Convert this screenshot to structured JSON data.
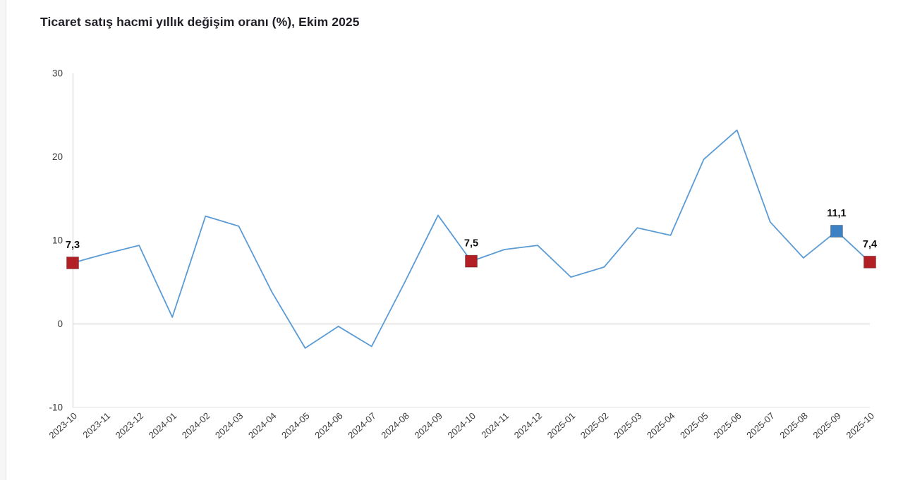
{
  "page": {
    "title": "Ticaret satış hacmi yıllık değişim oranı (%), Ekim 2025"
  },
  "chart_data": {
    "type": "line",
    "title": "Ticaret satış hacmi yıllık değişim oranı (%), Ekim 2025",
    "categories": [
      "2023-10",
      "2023-11",
      "2023-12",
      "2024-01",
      "2024-02",
      "2024-03",
      "2024-04",
      "2024-05",
      "2024-06",
      "2024-07",
      "2024-08",
      "2024-09",
      "2024-10",
      "2024-11",
      "2024-12",
      "2025-01",
      "2025-02",
      "2025-03",
      "2025-04",
      "2025-05",
      "2025-06",
      "2025-07",
      "2025-08",
      "2025-09",
      "2025-10"
    ],
    "series": [
      {
        "name": "Ticaret satış hacmi yıllık değişim oranı (%)",
        "values": [
          7.3,
          8.4,
          9.4,
          0.8,
          12.9,
          11.7,
          3.8,
          -2.9,
          -0.3,
          -2.7,
          5.0,
          13.0,
          7.5,
          8.9,
          9.4,
          5.6,
          6.8,
          11.5,
          10.6,
          19.7,
          23.2,
          12.2,
          7.9,
          11.1,
          7.4
        ]
      }
    ],
    "highlighted_points": [
      {
        "category": "2023-10",
        "value": 7.3,
        "label": "7,3",
        "marker": "square",
        "marker_color": "#b21f24"
      },
      {
        "category": "2024-10",
        "value": 7.5,
        "label": "7,5",
        "marker": "square",
        "marker_color": "#b21f24"
      },
      {
        "category": "2025-09",
        "value": 11.1,
        "label": "11,1",
        "marker": "square",
        "marker_color": "#3d80c4"
      },
      {
        "category": "2025-10",
        "value": 7.4,
        "label": "7,4",
        "marker": "square",
        "marker_color": "#b21f24"
      }
    ],
    "ylim": [
      -10,
      30
    ],
    "yticks": [
      30,
      20,
      10,
      0,
      -10
    ],
    "xlabel": "",
    "ylabel": "",
    "legend": "none",
    "gridlines": "horizontal line at 0 and at axis bottom only",
    "x_tick_rotation_deg": -42,
    "decimal_separator": ",",
    "colors": {
      "line": "#5b9bd5",
      "marker_red": "#b21f24",
      "marker_blue": "#3d80c4",
      "title_text": "#1e1e26",
      "tick_text": "#3c3c3c",
      "value_label_text": "#0d0d0d",
      "axis_line": "#d9d9d9",
      "zero_gridline": "#ececec",
      "background": "#ffffff"
    }
  }
}
